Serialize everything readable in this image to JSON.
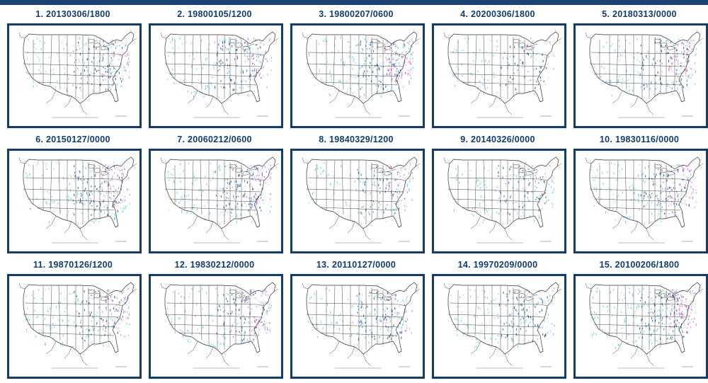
{
  "analogs": [
    {
      "rank": "1.",
      "label": "20130306/1800",
      "snow": {
        "cyan": 0.5,
        "blue": 0.45,
        "pink": 0.25
      }
    },
    {
      "rank": "2.",
      "label": "19800105/1200",
      "snow": {
        "cyan": 0.55,
        "blue": 0.45,
        "pink": 0.25
      }
    },
    {
      "rank": "3.",
      "label": "19800207/0600",
      "snow": {
        "cyan": 0.6,
        "blue": 0.5,
        "pink": 0.55
      }
    },
    {
      "rank": "4.",
      "label": "20200306/1800",
      "snow": {
        "cyan": 0.35,
        "blue": 0.3,
        "pink": 0.05
      }
    },
    {
      "rank": "5.",
      "label": "20180313/0000",
      "snow": {
        "cyan": 0.5,
        "blue": 0.45,
        "pink": 0.4
      }
    },
    {
      "rank": "6.",
      "label": "20150127/0000",
      "snow": {
        "cyan": 0.45,
        "blue": 0.55,
        "pink": 0.45
      }
    },
    {
      "rank": "7.",
      "label": "20060212/0600",
      "snow": {
        "cyan": 0.5,
        "blue": 0.5,
        "pink": 0.35
      }
    },
    {
      "rank": "8.",
      "label": "19840329/1200",
      "snow": {
        "cyan": 0.35,
        "blue": 0.35,
        "pink": 0.3
      }
    },
    {
      "rank": "9.",
      "label": "20140326/0000",
      "snow": {
        "cyan": 0.45,
        "blue": 0.35,
        "pink": 0.1
      }
    },
    {
      "rank": "10.",
      "label": "19830116/0000",
      "snow": {
        "cyan": 0.45,
        "blue": 0.45,
        "pink": 0.35
      }
    },
    {
      "rank": "11.",
      "label": "19870126/1200",
      "snow": {
        "cyan": 0.5,
        "blue": 0.4,
        "pink": 0.35
      }
    },
    {
      "rank": "12.",
      "label": "19830212/0000",
      "snow": {
        "cyan": 0.45,
        "blue": 0.4,
        "pink": 0.45
      }
    },
    {
      "rank": "13.",
      "label": "20110127/0000",
      "snow": {
        "cyan": 0.45,
        "blue": 0.5,
        "pink": 0.15
      }
    },
    {
      "rank": "14.",
      "label": "19970209/0000",
      "snow": {
        "cyan": 0.5,
        "blue": 0.45,
        "pink": 0.05
      }
    },
    {
      "rank": "15.",
      "label": "20100206/1800",
      "snow": {
        "cyan": 0.6,
        "blue": 0.6,
        "pink": 0.55
      }
    }
  ],
  "colors": {
    "header_bar": "#1c4274",
    "title_text": "#123c6e",
    "frame_border": "#123c6e",
    "snow_light": "#5fc9ea",
    "snow_medium": "#2a4f8f",
    "snow_heavy": "#e866d8",
    "map_lines": "#333333"
  }
}
